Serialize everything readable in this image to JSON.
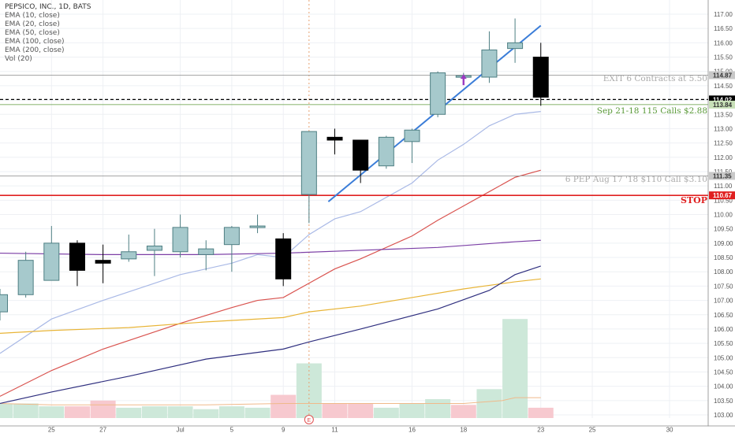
{
  "legend": {
    "title": "PEPSICO, INC., 1D, BATS",
    "items": [
      "EMA (10, close)",
      "EMA (20, close)",
      "EMA (50, close)",
      "EMA (100, close)",
      "EMA (200, close)",
      "Vol (20)"
    ]
  },
  "chart_data": {
    "type": "candlestick",
    "ylim": [
      102.6,
      117.3
    ],
    "y_ticks": [
      "103.00",
      "103.50",
      "104.00",
      "104.50",
      "105.00",
      "105.50",
      "106.00",
      "106.50",
      "107.00",
      "107.50",
      "108.00",
      "108.50",
      "109.00",
      "109.50",
      "110.00",
      "110.50",
      "111.00",
      "111.50",
      "112.00",
      "112.50",
      "113.00",
      "113.50",
      "114.00",
      "114.50",
      "115.00",
      "115.50",
      "116.00",
      "116.50",
      "117.00"
    ],
    "x_ticks": [
      {
        "label": "25",
        "x": 4.5
      },
      {
        "label": "27",
        "x": 8.5
      },
      {
        "label": "Jul",
        "x": 14.5
      },
      {
        "label": "5",
        "x": 18.5
      },
      {
        "label": "9",
        "x": 22.5
      },
      {
        "label": "11",
        "x": 26.5
      },
      {
        "label": "16",
        "x": 32.5
      },
      {
        "label": "18",
        "x": 36.5
      },
      {
        "label": "23",
        "x": 42.5
      },
      {
        "label": "25",
        "x": 46.5
      },
      {
        "label": "30",
        "x": 52.5
      }
    ],
    "x_range": [
      0.5,
      55.5
    ],
    "candles": [
      {
        "x": 0.5,
        "o": 106.6,
        "h": 107.4,
        "l": 106.3,
        "c": 107.2
      },
      {
        "x": 2.5,
        "o": 107.2,
        "h": 108.7,
        "l": 107.1,
        "c": 108.4
      },
      {
        "x": 4.5,
        "o": 107.7,
        "h": 109.6,
        "l": 107.7,
        "c": 109.0
      },
      {
        "x": 6.5,
        "o": 109.0,
        "h": 109.1,
        "l": 107.5,
        "c": 108.05
      },
      {
        "x": 8.5,
        "o": 108.4,
        "h": 108.95,
        "l": 107.6,
        "c": 108.3
      },
      {
        "x": 10.5,
        "o": 108.45,
        "h": 109.3,
        "l": 108.35,
        "c": 108.7
      },
      {
        "x": 12.5,
        "o": 108.75,
        "h": 109.5,
        "l": 107.85,
        "c": 108.9
      },
      {
        "x": 14.5,
        "o": 108.7,
        "h": 110.0,
        "l": 108.5,
        "c": 109.55
      },
      {
        "x": 16.5,
        "o": 108.6,
        "h": 109.1,
        "l": 108.05,
        "c": 108.8
      },
      {
        "x": 18.5,
        "o": 108.95,
        "h": 109.6,
        "l": 108.0,
        "c": 109.55
      },
      {
        "x": 20.5,
        "o": 109.55,
        "h": 110.0,
        "l": 109.35,
        "c": 109.6
      },
      {
        "x": 22.5,
        "o": 109.15,
        "h": 109.35,
        "l": 107.5,
        "c": 107.75
      },
      {
        "x": 24.5,
        "o": 110.7,
        "h": 112.9,
        "l": 109.7,
        "c": 112.9
      },
      {
        "x": 26.5,
        "o": 112.7,
        "h": 113.0,
        "l": 112.1,
        "c": 112.6
      },
      {
        "x": 28.5,
        "o": 112.6,
        "h": 112.55,
        "l": 111.1,
        "c": 111.55
      },
      {
        "x": 30.5,
        "o": 111.7,
        "h": 112.75,
        "l": 111.6,
        "c": 112.7
      },
      {
        "x": 32.5,
        "o": 112.55,
        "h": 113.0,
        "l": 111.8,
        "c": 112.95
      },
      {
        "x": 34.5,
        "o": 113.5,
        "h": 115.0,
        "l": 113.4,
        "c": 114.95
      },
      {
        "x": 36.5,
        "o": 114.8,
        "h": 114.95,
        "l": 114.6,
        "c": 114.85
      },
      {
        "x": 38.5,
        "o": 114.8,
        "h": 116.4,
        "l": 114.6,
        "c": 115.75
      },
      {
        "x": 40.5,
        "o": 115.8,
        "h": 116.85,
        "l": 115.3,
        "c": 116.0
      },
      {
        "x": 42.5,
        "o": 115.5,
        "h": 116.0,
        "l": 113.8,
        "c": 114.1
      }
    ],
    "volume": {
      "max_price_height": 106.35,
      "base": 102.6,
      "bars": [
        {
          "x": 0.5,
          "top": 103.4,
          "up": true
        },
        {
          "x": 2.5,
          "top": 103.4,
          "up": true
        },
        {
          "x": 4.5,
          "top": 103.3,
          "up": true
        },
        {
          "x": 6.5,
          "top": 103.3,
          "up": false
        },
        {
          "x": 8.5,
          "top": 103.5,
          "up": false
        },
        {
          "x": 10.5,
          "top": 103.25,
          "up": true
        },
        {
          "x": 12.5,
          "top": 103.3,
          "up": true
        },
        {
          "x": 14.5,
          "top": 103.3,
          "up": true
        },
        {
          "x": 16.5,
          "top": 103.2,
          "up": true
        },
        {
          "x": 18.5,
          "top": 103.3,
          "up": true
        },
        {
          "x": 20.5,
          "top": 103.25,
          "up": true
        },
        {
          "x": 22.5,
          "top": 103.7,
          "up": false
        },
        {
          "x": 24.5,
          "top": 104.8,
          "up": true
        },
        {
          "x": 26.5,
          "top": 103.4,
          "up": false
        },
        {
          "x": 28.5,
          "top": 103.4,
          "up": false
        },
        {
          "x": 30.5,
          "top": 103.25,
          "up": true
        },
        {
          "x": 32.5,
          "top": 103.4,
          "up": true
        },
        {
          "x": 34.5,
          "top": 103.55,
          "up": true
        },
        {
          "x": 36.5,
          "top": 103.35,
          "up": false
        },
        {
          "x": 38.5,
          "top": 103.9,
          "up": true
        },
        {
          "x": 40.5,
          "top": 106.35,
          "up": true
        },
        {
          "x": 42.5,
          "top": 103.25,
          "up": false
        }
      ],
      "ma": [
        [
          0.5,
          103.4
        ],
        [
          4.5,
          103.35
        ],
        [
          10.5,
          103.35
        ],
        [
          16.5,
          103.35
        ],
        [
          22.5,
          103.4
        ],
        [
          26.5,
          103.4
        ],
        [
          32.5,
          103.4
        ],
        [
          36.5,
          103.4
        ],
        [
          39.5,
          103.5
        ],
        [
          40.5,
          103.6
        ],
        [
          42.5,
          103.6
        ]
      ]
    },
    "series": [
      {
        "color": "#a9b9e6",
        "points": [
          [
            0.5,
            105.15
          ],
          [
            4.5,
            106.35
          ],
          [
            8.5,
            107.0
          ],
          [
            12.5,
            107.6
          ],
          [
            14.5,
            107.9
          ],
          [
            18.5,
            108.3
          ],
          [
            20.5,
            108.6
          ],
          [
            22.5,
            108.5
          ],
          [
            24.5,
            109.3
          ],
          [
            26.5,
            109.85
          ],
          [
            28.5,
            110.1
          ],
          [
            32.5,
            111.1
          ],
          [
            34.5,
            111.9
          ],
          [
            36.5,
            112.45
          ],
          [
            38.5,
            113.1
          ],
          [
            40.5,
            113.5
          ],
          [
            42.5,
            113.6
          ]
        ]
      },
      {
        "color": "#d9534f",
        "points": [
          [
            0.5,
            103.65
          ],
          [
            4.5,
            104.55
          ],
          [
            8.5,
            105.3
          ],
          [
            14.5,
            106.2
          ],
          [
            18.5,
            106.75
          ],
          [
            20.5,
            107.0
          ],
          [
            22.5,
            107.1
          ],
          [
            24.5,
            107.6
          ],
          [
            26.5,
            108.1
          ],
          [
            28.5,
            108.45
          ],
          [
            32.5,
            109.25
          ],
          [
            34.5,
            109.8
          ],
          [
            36.5,
            110.3
          ],
          [
            38.5,
            110.8
          ],
          [
            40.5,
            111.3
          ],
          [
            42.5,
            111.55
          ]
        ]
      },
      {
        "color": "#7b3fa6",
        "points": [
          [
            0.5,
            108.65
          ],
          [
            8.5,
            108.6
          ],
          [
            16.5,
            108.6
          ],
          [
            22.5,
            108.65
          ],
          [
            28.5,
            108.75
          ],
          [
            34.5,
            108.85
          ],
          [
            40.5,
            109.05
          ],
          [
            42.5,
            109.1
          ]
        ]
      },
      {
        "color": "#e8b436",
        "points": [
          [
            0.5,
            105.85
          ],
          [
            4.5,
            105.95
          ],
          [
            10.5,
            106.05
          ],
          [
            16.5,
            106.25
          ],
          [
            22.5,
            106.4
          ],
          [
            24.5,
            106.6
          ],
          [
            28.5,
            106.8
          ],
          [
            32.5,
            107.1
          ],
          [
            36.5,
            107.4
          ],
          [
            40.5,
            107.65
          ],
          [
            42.5,
            107.75
          ]
        ]
      },
      {
        "color": "#2f2f7f",
        "points": [
          [
            0.5,
            103.4
          ],
          [
            4.5,
            103.8
          ],
          [
            10.5,
            104.35
          ],
          [
            16.5,
            104.95
          ],
          [
            22.5,
            105.3
          ],
          [
            24.5,
            105.55
          ],
          [
            28.5,
            106.0
          ],
          [
            34.5,
            106.7
          ],
          [
            38.5,
            107.35
          ],
          [
            40.5,
            107.9
          ],
          [
            42.5,
            108.2
          ]
        ]
      }
    ],
    "trendline": {
      "color": "#3b7dd8",
      "points": [
        [
          26.0,
          110.45
        ],
        [
          42.5,
          116.6
        ]
      ]
    },
    "hlines": [
      {
        "y": 114.87,
        "color": "#999999",
        "style": "solid",
        "width": 0.8,
        "label": "EXIT 6 Contracts at 5.50",
        "label_color": "#aaaaaa",
        "price_label": "114.87",
        "price_bg": "#c8c8c8",
        "price_fg": "#333333"
      },
      {
        "y": 114.02,
        "color": "#000000",
        "style": "dashed",
        "width": 1.3,
        "label": "",
        "price_label": "114.02",
        "price_bg": "#000000",
        "price_fg": "#ffffff"
      },
      {
        "y": 113.84,
        "color": "#5b9a3a",
        "style": "solid",
        "width": 0.8,
        "label": "Sep 21-18 115 Calls $2.88",
        "label_color": "#5b9a3a",
        "price_label": "113.84",
        "price_bg": "#c8e0b8",
        "price_fg": "#333333"
      },
      {
        "y": 111.35,
        "color": "#999999",
        "style": "solid",
        "width": 0.8,
        "label": "6 PEP Aug 17 '18 $110 Call $3.10",
        "label_color": "#aaaaaa",
        "price_label": "111.35",
        "price_bg": "#c8c8c8",
        "price_fg": "#333333"
      },
      {
        "y": 110.67,
        "color": "#e02020",
        "style": "solid",
        "width": 1.6,
        "label": "STOP",
        "label_color": "#e02020",
        "price_label": "110.67",
        "price_bg": "#e02020",
        "price_fg": "#ffffff"
      }
    ],
    "markers": [
      {
        "type": "arrow",
        "x": 36.5,
        "y": 114.85,
        "color": "#9a3ac0"
      },
      {
        "type": "earnings",
        "x": 24.5,
        "label": "E",
        "color": "#e05050"
      }
    ],
    "vline": {
      "x": 24.5,
      "color": "#e8a070"
    },
    "colors": {
      "up_fill": "#a6c9cc",
      "up_border": "#4e7f83",
      "down_fill": "#000000",
      "vol_up": "#cde8d9",
      "vol_down": "#f7c9cf",
      "grid": "#eef0f4"
    }
  }
}
